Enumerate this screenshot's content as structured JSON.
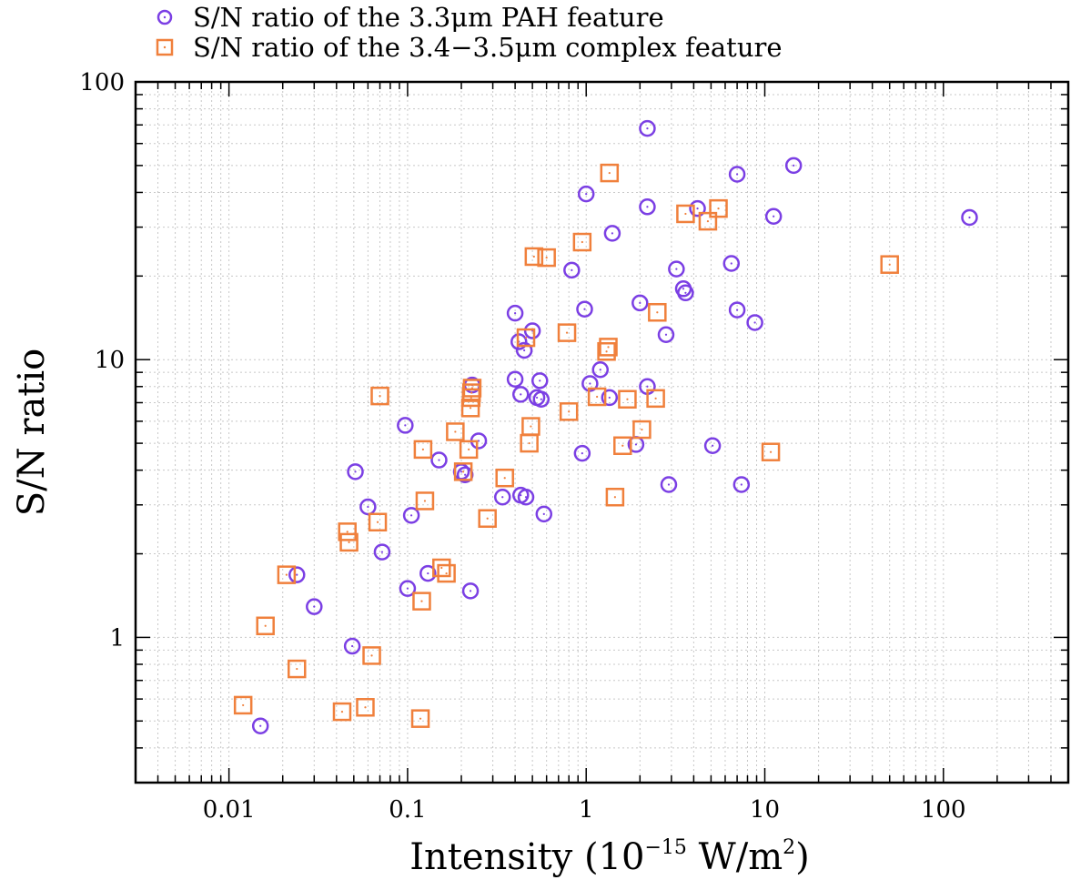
{
  "chart_data": {
    "type": "scatter",
    "title": "",
    "xlabel": {
      "base": "Intensity (10",
      "exp": "−15",
      "unit": " W/m",
      "unit_exp": "2",
      "close": ")"
    },
    "ylabel": "S/N ratio",
    "x_scale": "log",
    "y_scale": "log",
    "xlim": [
      0.003,
      500
    ],
    "ylim": [
      0.3,
      100
    ],
    "x_tick_labels": [
      "0.01",
      "0.1",
      "1",
      "10",
      "100"
    ],
    "y_tick_labels": [
      "1",
      "10",
      "100"
    ],
    "grid": true,
    "legend_position": "top-left, above plot",
    "series": [
      {
        "name": "S/N ratio of the 3.3μm PAH feature",
        "marker": "circle",
        "color": "#7b3fe4",
        "points": [
          [
            0.015,
            0.48
          ],
          [
            0.024,
            1.68
          ],
          [
            0.03,
            1.29
          ],
          [
            0.049,
            0.93
          ],
          [
            0.051,
            3.95
          ],
          [
            0.06,
            2.95
          ],
          [
            0.072,
            2.03
          ],
          [
            0.097,
            5.8
          ],
          [
            0.1,
            1.5
          ],
          [
            0.105,
            2.75
          ],
          [
            0.13,
            1.7
          ],
          [
            0.15,
            4.35
          ],
          [
            0.2,
            3.95
          ],
          [
            0.21,
            3.85
          ],
          [
            0.225,
            1.47
          ],
          [
            0.23,
            8.1
          ],
          [
            0.25,
            5.1
          ],
          [
            0.34,
            3.2
          ],
          [
            0.4,
            14.7
          ],
          [
            0.4,
            8.5
          ],
          [
            0.42,
            11.6
          ],
          [
            0.43,
            7.5
          ],
          [
            0.43,
            3.25
          ],
          [
            0.45,
            10.8
          ],
          [
            0.46,
            3.2
          ],
          [
            0.5,
            12.7
          ],
          [
            0.53,
            7.3
          ],
          [
            0.55,
            8.4
          ],
          [
            0.56,
            7.2
          ],
          [
            0.58,
            2.78
          ],
          [
            0.83,
            21
          ],
          [
            0.95,
            4.6
          ],
          [
            0.98,
            15.2
          ],
          [
            1.0,
            39.5
          ],
          [
            1.05,
            8.2
          ],
          [
            1.2,
            9.2
          ],
          [
            1.35,
            7.3
          ],
          [
            1.4,
            28.5
          ],
          [
            1.9,
            4.95
          ],
          [
            2.0,
            16
          ],
          [
            2.2,
            68
          ],
          [
            2.2,
            35.5
          ],
          [
            2.2,
            8.0
          ],
          [
            2.8,
            12.3
          ],
          [
            2.9,
            3.55
          ],
          [
            3.2,
            21.2
          ],
          [
            3.5,
            18
          ],
          [
            3.6,
            17.4
          ],
          [
            4.2,
            35
          ],
          [
            5.1,
            4.9
          ],
          [
            6.5,
            22.2
          ],
          [
            7.0,
            15.1
          ],
          [
            7.0,
            46.5
          ],
          [
            7.4,
            3.55
          ],
          [
            8.8,
            13.6
          ],
          [
            11.2,
            32.8
          ],
          [
            14.5,
            50
          ],
          [
            140,
            32.5
          ]
        ]
      },
      {
        "name": "S/N ratio of the 3.4−3.5μm complex feature",
        "marker": "square",
        "color": "#f0803c",
        "points": [
          [
            0.012,
            0.57
          ],
          [
            0.016,
            1.1
          ],
          [
            0.021,
            1.68
          ],
          [
            0.024,
            0.77
          ],
          [
            0.043,
            0.54
          ],
          [
            0.046,
            2.4
          ],
          [
            0.047,
            2.2
          ],
          [
            0.058,
            0.56
          ],
          [
            0.063,
            0.86
          ],
          [
            0.068,
            2.6
          ],
          [
            0.07,
            7.4
          ],
          [
            0.118,
            0.51
          ],
          [
            0.12,
            1.35
          ],
          [
            0.122,
            4.75
          ],
          [
            0.125,
            3.1
          ],
          [
            0.155,
            1.78
          ],
          [
            0.165,
            1.7
          ],
          [
            0.185,
            5.5
          ],
          [
            0.205,
            3.95
          ],
          [
            0.22,
            4.75
          ],
          [
            0.225,
            6.7
          ],
          [
            0.227,
            7.3
          ],
          [
            0.228,
            7.6
          ],
          [
            0.23,
            7.9
          ],
          [
            0.28,
            2.68
          ],
          [
            0.35,
            3.75
          ],
          [
            0.46,
            12
          ],
          [
            0.48,
            5.0
          ],
          [
            0.49,
            5.75
          ],
          [
            0.51,
            23.5
          ],
          [
            0.6,
            23.3
          ],
          [
            0.78,
            12.5
          ],
          [
            0.8,
            6.5
          ],
          [
            0.95,
            26.5
          ],
          [
            1.15,
            7.35
          ],
          [
            1.3,
            10.7
          ],
          [
            1.33,
            11.1
          ],
          [
            1.35,
            47
          ],
          [
            1.45,
            3.2
          ],
          [
            1.6,
            4.9
          ],
          [
            1.7,
            7.2
          ],
          [
            2.05,
            5.6
          ],
          [
            2.45,
            7.25
          ],
          [
            2.5,
            14.8
          ],
          [
            3.6,
            33.5
          ],
          [
            4.8,
            31.5
          ],
          [
            5.5,
            35
          ],
          [
            10.8,
            4.65
          ],
          [
            50,
            22
          ]
        ]
      }
    ]
  }
}
